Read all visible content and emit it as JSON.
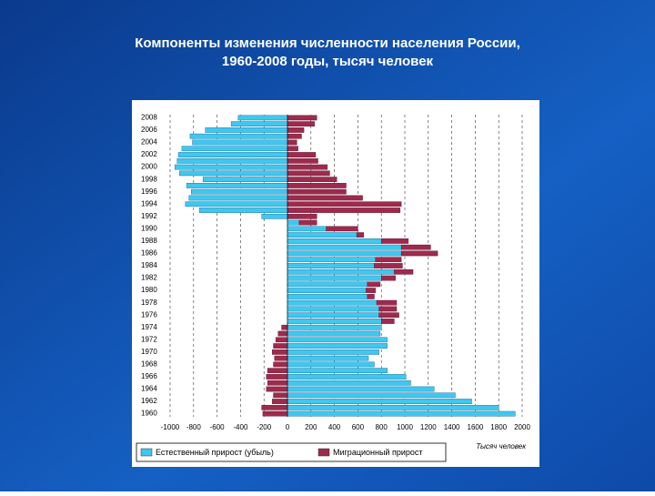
{
  "chart_data": {
    "type": "bar",
    "title": [
      "Компоненты изменения численности населения России,",
      "1960-2008 годы, тысяч человек"
    ],
    "categories": [
      "1960",
      null,
      "1962",
      null,
      "1964",
      null,
      "1966",
      null,
      "1968",
      null,
      "1970",
      null,
      "1972",
      null,
      "1974",
      null,
      "1976",
      null,
      "1978",
      null,
      "1980",
      null,
      "1982",
      null,
      "1984",
      null,
      "1986",
      null,
      "1988",
      null,
      "1990",
      null,
      "1992",
      null,
      "1994",
      null,
      "1996",
      null,
      "1998",
      null,
      "2000",
      null,
      "2002",
      null,
      "2004",
      null,
      "2006",
      null,
      "2008"
    ],
    "series": [
      {
        "name": "Естественный прирост (убыль)",
        "color": "#3ec8f0",
        "values": [
          1940,
          1800,
          1570,
          1430,
          1250,
          1050,
          1010,
          850,
          740,
          690,
          780,
          850,
          850,
          790,
          800,
          800,
          780,
          780,
          760,
          680,
          670,
          680,
          800,
          910,
          740,
          750,
          970,
          970,
          800,
          590,
          330,
          100,
          -220,
          -750,
          -870,
          -840,
          -820,
          -860,
          -720,
          -920,
          -960,
          -940,
          -930,
          -900,
          -810,
          -830,
          -700,
          -480,
          -420
        ]
      },
      {
        "name": "Миграционный прирост",
        "color": "#9e2a4e",
        "values": [
          -210,
          -220,
          -130,
          -120,
          -180,
          -170,
          -180,
          -170,
          -120,
          -110,
          -130,
          -120,
          -100,
          -80,
          -50,
          110,
          170,
          150,
          170,
          60,
          80,
          110,
          120,
          160,
          240,
          220,
          310,
          250,
          230,
          60,
          270,
          150,
          250,
          960,
          970,
          640,
          500,
          500,
          420,
          360,
          340,
          260,
          240,
          90,
          80,
          120,
          140,
          230,
          250
        ]
      }
    ],
    "xlim": [
      -1000,
      2000
    ],
    "xticks": [
      -1000,
      -800,
      -600,
      -400,
      -200,
      0,
      200,
      400,
      600,
      800,
      1000,
      1200,
      1400,
      1600,
      1800,
      2000
    ],
    "x_label": "Тысяч человек",
    "grid": true
  }
}
